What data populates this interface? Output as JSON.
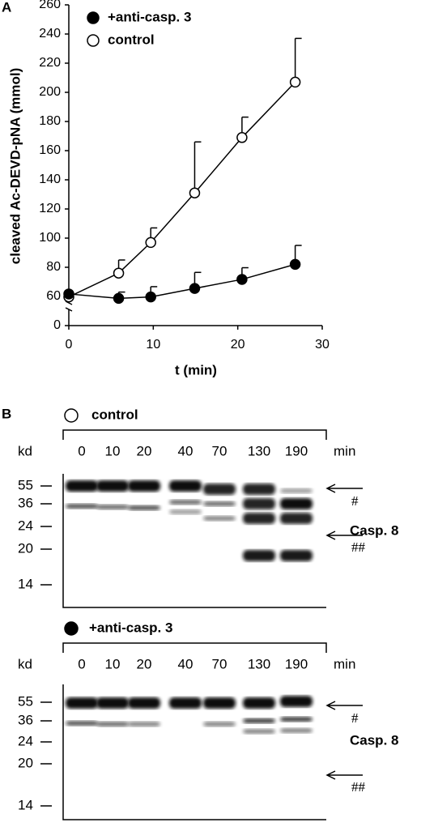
{
  "chart_data": {
    "type": "line",
    "panel_label": "A",
    "y_label": "cleaved Ac-DEVD-pNA (mmol)",
    "x_label": "t (min)",
    "xlim": [
      0,
      30
    ],
    "xticks": [
      0,
      10,
      20,
      30
    ],
    "ylim": [
      0,
      260
    ],
    "yticks": [
      0,
      60,
      80,
      100,
      120,
      140,
      160,
      180,
      200,
      220,
      240,
      260
    ],
    "series": [
      {
        "name": "+anti-casp. 3",
        "color": "#000000",
        "filled": true,
        "x": [
          0,
          5.9,
          9.7,
          14.9,
          20.5,
          26.8
        ],
        "values": [
          61.7,
          56,
          59,
          65.5,
          71.7,
          82
        ],
        "errors": [
          0,
          7,
          7.7,
          11,
          8,
          13
        ]
      },
      {
        "name": "control",
        "color": "#000000",
        "filled": false,
        "x": [
          0,
          5.9,
          9.7,
          14.9,
          20.5,
          26.8
        ],
        "values": [
          59,
          76,
          97,
          131,
          169,
          207
        ],
        "errors": [
          0,
          9,
          10,
          35,
          14,
          30
        ]
      }
    ]
  },
  "panel_b": {
    "panel_label": "B",
    "kd": "kd",
    "min": "min",
    "protein": "Casp. 8",
    "arrow_top": "#",
    "arrow_bottom": "##",
    "lanes": [
      "0",
      "10",
      "20",
      "40",
      "70",
      "130",
      "190"
    ],
    "markers": [
      "55",
      "36",
      "24",
      "20",
      "14"
    ],
    "blots": [
      {
        "condition": "control"
      },
      {
        "condition": "+anti-casp. 3"
      }
    ]
  }
}
